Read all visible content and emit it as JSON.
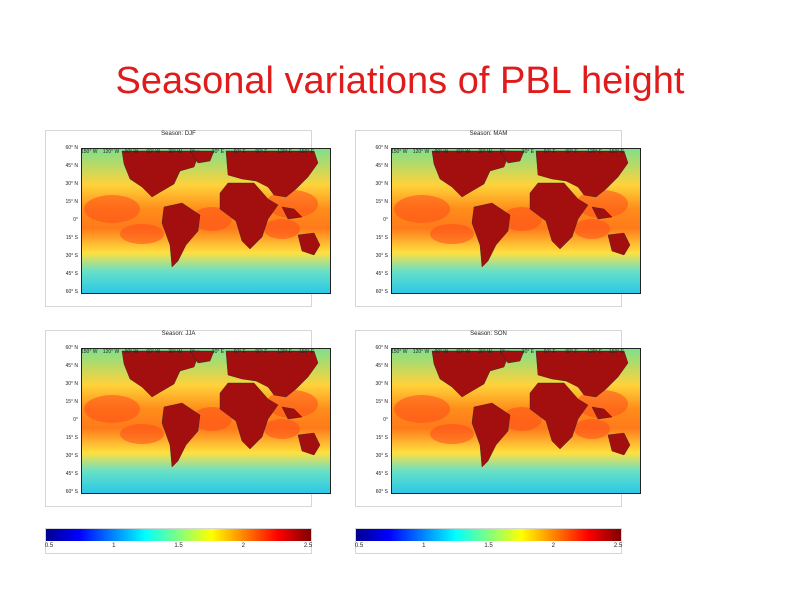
{
  "title": "Seasonal variations of PBL height",
  "chart_data": {
    "type": "heatmap",
    "title": "Seasonal variations of PBL height",
    "colormap": [
      "#00008f",
      "#0000ff",
      "#0080ff",
      "#00ffff",
      "#80ff80",
      "#ffff00",
      "#ff8000",
      "#ff0000",
      "#800000"
    ],
    "land_color": "#a30f0f",
    "color_range": [
      0.5,
      2.5
    ],
    "colorbar_ticks": [
      "0.5",
      "1",
      "1.5",
      "2",
      "2.5"
    ],
    "lat_labels": [
      "60° N",
      "45° N",
      "30° N",
      "15° N",
      "0°",
      "15° S",
      "30° S",
      "45° S",
      "60° S"
    ],
    "lon_labels": [
      "150° W",
      "120° W",
      "90° W",
      "60° W",
      "30° W",
      "0°",
      "30° E",
      "60° E",
      "90° E",
      "120° E",
      "150° E"
    ],
    "panels": [
      {
        "title": "Season: DJF"
      },
      {
        "title": "Season: MAM"
      },
      {
        "title": "Season: JJA"
      },
      {
        "title": "Season: SON"
      }
    ]
  }
}
